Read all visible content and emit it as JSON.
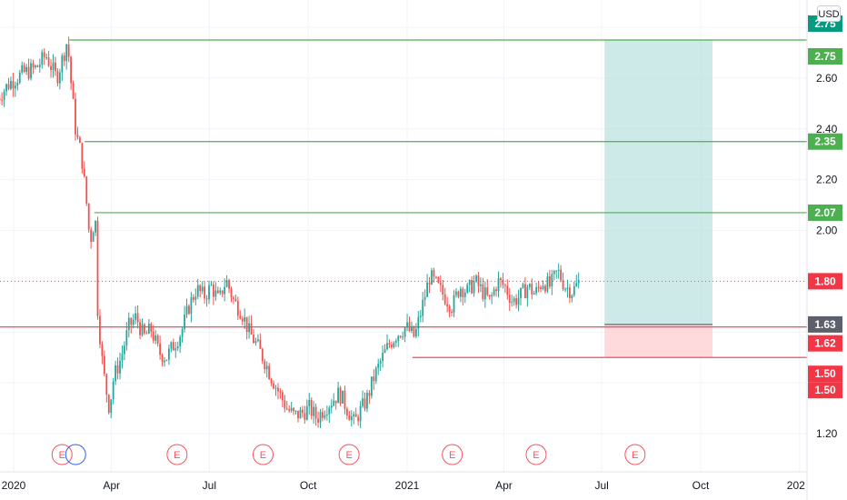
{
  "currency": "USD",
  "colors": {
    "up": "#26a69a",
    "down": "#ef5350",
    "resistance_line": "#4caf50",
    "support_line": "#f23645",
    "target_zone": "#b2dfdb",
    "stop_zone": "#ffcdd2",
    "grid": "#f0f3fa",
    "axis_text": "#131722"
  },
  "chart_data": {
    "type": "candlestick",
    "x_ticks": [
      "2020",
      "Apr",
      "Jul",
      "Oct",
      "2021",
      "Apr",
      "Jul",
      "Oct",
      "202"
    ],
    "y_ticks": [
      "2.60",
      "2.40",
      "2.20",
      "2.00",
      "1.20"
    ],
    "y_range": [
      1.06,
      2.84
    ],
    "last_price": 1.8,
    "earnings_markers": [
      "E",
      "E",
      "E",
      "E",
      "E",
      "E",
      "E"
    ],
    "horizontal_levels": [
      {
        "label": "2.75",
        "value": 2.75,
        "color": "green"
      },
      {
        "label": "2.35",
        "value": 2.35,
        "color": "green"
      },
      {
        "label": "2.07",
        "value": 2.07,
        "color": "green"
      },
      {
        "label": "1.62",
        "value": 1.62,
        "color": "red"
      },
      {
        "label": "1.50",
        "value": 1.5,
        "color": "red"
      }
    ],
    "price_badges": [
      {
        "label": "2.75",
        "value": 2.75,
        "color": "#089981"
      },
      {
        "label": "2.75",
        "value": 2.75,
        "color": "#4caf50"
      },
      {
        "label": "2.35",
        "value": 2.35,
        "color": "#4caf50"
      },
      {
        "label": "2.07",
        "value": 2.07,
        "color": "#4caf50"
      },
      {
        "label": "1.80",
        "value": 1.8,
        "color": "#f23645"
      },
      {
        "label": "1.63",
        "value": 1.63,
        "color": "#5d606b"
      },
      {
        "label": "1.62",
        "value": 1.62,
        "color": "#f23645"
      },
      {
        "label": "1.50",
        "value": 1.5,
        "color": "#f23645"
      },
      {
        "label": "1.50",
        "value": 1.5,
        "color": "#f23645"
      }
    ],
    "long_position": {
      "entry": 1.63,
      "target": 2.75,
      "stop": 1.5,
      "start_date": "2021-07",
      "end_date": "2021-10"
    },
    "price_path": [
      [
        "2019-12-17",
        2.52
      ],
      [
        "2019-12-28",
        2.58
      ],
      [
        "2020-01-10",
        2.62
      ],
      [
        "2020-01-22",
        2.64
      ],
      [
        "2020-01-31",
        2.69
      ],
      [
        "2020-02-10",
        2.6
      ],
      [
        "2020-02-17",
        2.7
      ],
      [
        "2020-02-20",
        2.75
      ],
      [
        "2020-02-24",
        2.55
      ],
      [
        "2020-02-28",
        2.38
      ],
      [
        "2020-03-04",
        2.3
      ],
      [
        "2020-03-09",
        2.1
      ],
      [
        "2020-03-12",
        1.95
      ],
      [
        "2020-03-14",
        2.0
      ],
      [
        "2020-03-17",
        2.05
      ],
      [
        "2020-03-19",
        1.7
      ],
      [
        "2020-03-23",
        1.5
      ],
      [
        "2020-03-26",
        1.4
      ],
      [
        "2020-03-30",
        1.3
      ],
      [
        "2020-04-03",
        1.42
      ],
      [
        "2020-04-10",
        1.5
      ],
      [
        "2020-04-17",
        1.62
      ],
      [
        "2020-04-24",
        1.66
      ],
      [
        "2020-05-01",
        1.58
      ],
      [
        "2020-05-08",
        1.61
      ],
      [
        "2020-05-15",
        1.52
      ],
      [
        "2020-05-22",
        1.5
      ],
      [
        "2020-05-29",
        1.55
      ],
      [
        "2020-06-05",
        1.6
      ],
      [
        "2020-06-12",
        1.7
      ],
      [
        "2020-06-19",
        1.77
      ],
      [
        "2020-06-26",
        1.74
      ],
      [
        "2020-07-03",
        1.78
      ],
      [
        "2020-07-10",
        1.72
      ],
      [
        "2020-07-14",
        1.78
      ],
      [
        "2020-07-17",
        1.8
      ],
      [
        "2020-07-24",
        1.72
      ],
      [
        "2020-07-31",
        1.68
      ],
      [
        "2020-08-07",
        1.6
      ],
      [
        "2020-08-14",
        1.55
      ],
      [
        "2020-08-21",
        1.49
      ],
      [
        "2020-08-28",
        1.42
      ],
      [
        "2020-09-04",
        1.36
      ],
      [
        "2020-09-11",
        1.3
      ],
      [
        "2020-09-18",
        1.27
      ],
      [
        "2020-09-25",
        1.28
      ],
      [
        "2020-10-02",
        1.3
      ],
      [
        "2020-10-09",
        1.26
      ],
      [
        "2020-10-16",
        1.3
      ],
      [
        "2020-10-23",
        1.33
      ],
      [
        "2020-10-30",
        1.36
      ],
      [
        "2020-11-06",
        1.3
      ],
      [
        "2020-11-13",
        1.24
      ],
      [
        "2020-11-17",
        1.28
      ],
      [
        "2020-11-24",
        1.33
      ],
      [
        "2020-12-01",
        1.42
      ],
      [
        "2020-12-08",
        1.49
      ],
      [
        "2020-12-15",
        1.55
      ],
      [
        "2020-12-22",
        1.59
      ],
      [
        "2020-12-31",
        1.62
      ],
      [
        "2021-01-08",
        1.58
      ],
      [
        "2021-01-15",
        1.7
      ],
      [
        "2021-01-22",
        1.82
      ],
      [
        "2021-01-29",
        1.78
      ],
      [
        "2021-02-05",
        1.74
      ],
      [
        "2021-02-12",
        1.7
      ],
      [
        "2021-02-19",
        1.78
      ],
      [
        "2021-02-26",
        1.76
      ],
      [
        "2021-03-05",
        1.8
      ],
      [
        "2021-03-12",
        1.76
      ],
      [
        "2021-03-19",
        1.72
      ],
      [
        "2021-03-26",
        1.8
      ],
      [
        "2021-04-02",
        1.78
      ],
      [
        "2021-04-09",
        1.72
      ],
      [
        "2021-04-16",
        1.74
      ],
      [
        "2021-04-23",
        1.78
      ],
      [
        "2021-04-30",
        1.75
      ],
      [
        "2021-05-07",
        1.8
      ],
      [
        "2021-05-14",
        1.78
      ],
      [
        "2021-05-21",
        1.84
      ],
      [
        "2021-05-28",
        1.78
      ],
      [
        "2021-06-04",
        1.76
      ],
      [
        "2021-06-10",
        1.8
      ]
    ]
  }
}
